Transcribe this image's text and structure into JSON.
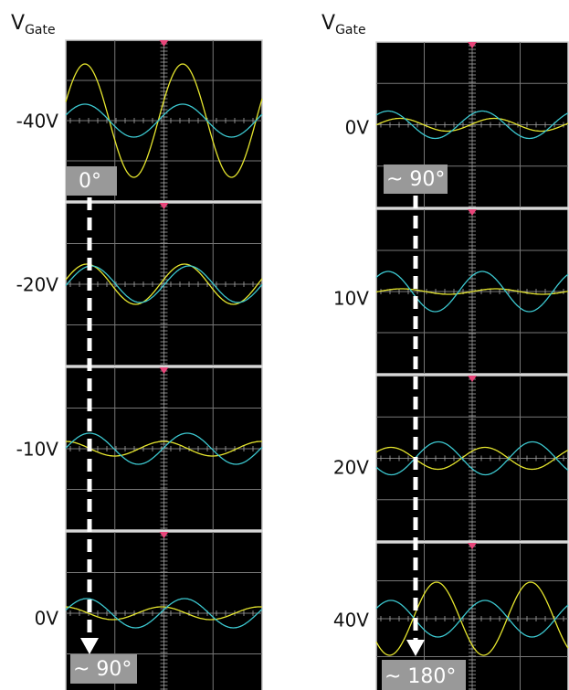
{
  "left": {
    "axis_label": {
      "main": "V",
      "sub": "Gate"
    },
    "panels": [
      {
        "label": "-40V"
      },
      {
        "label": "-20V"
      },
      {
        "label": "-10V"
      },
      {
        "label": "0V"
      }
    ],
    "phase_start": "0°",
    "phase_end": "~ 90°"
  },
  "right": {
    "axis_label": {
      "main": "V",
      "sub": "Gate"
    },
    "panels": [
      {
        "label": "0V"
      },
      {
        "label": "10V"
      },
      {
        "label": "20V"
      },
      {
        "label": "40V"
      }
    ],
    "phase_start": "~ 90°",
    "phase_end": "~ 180°"
  }
}
